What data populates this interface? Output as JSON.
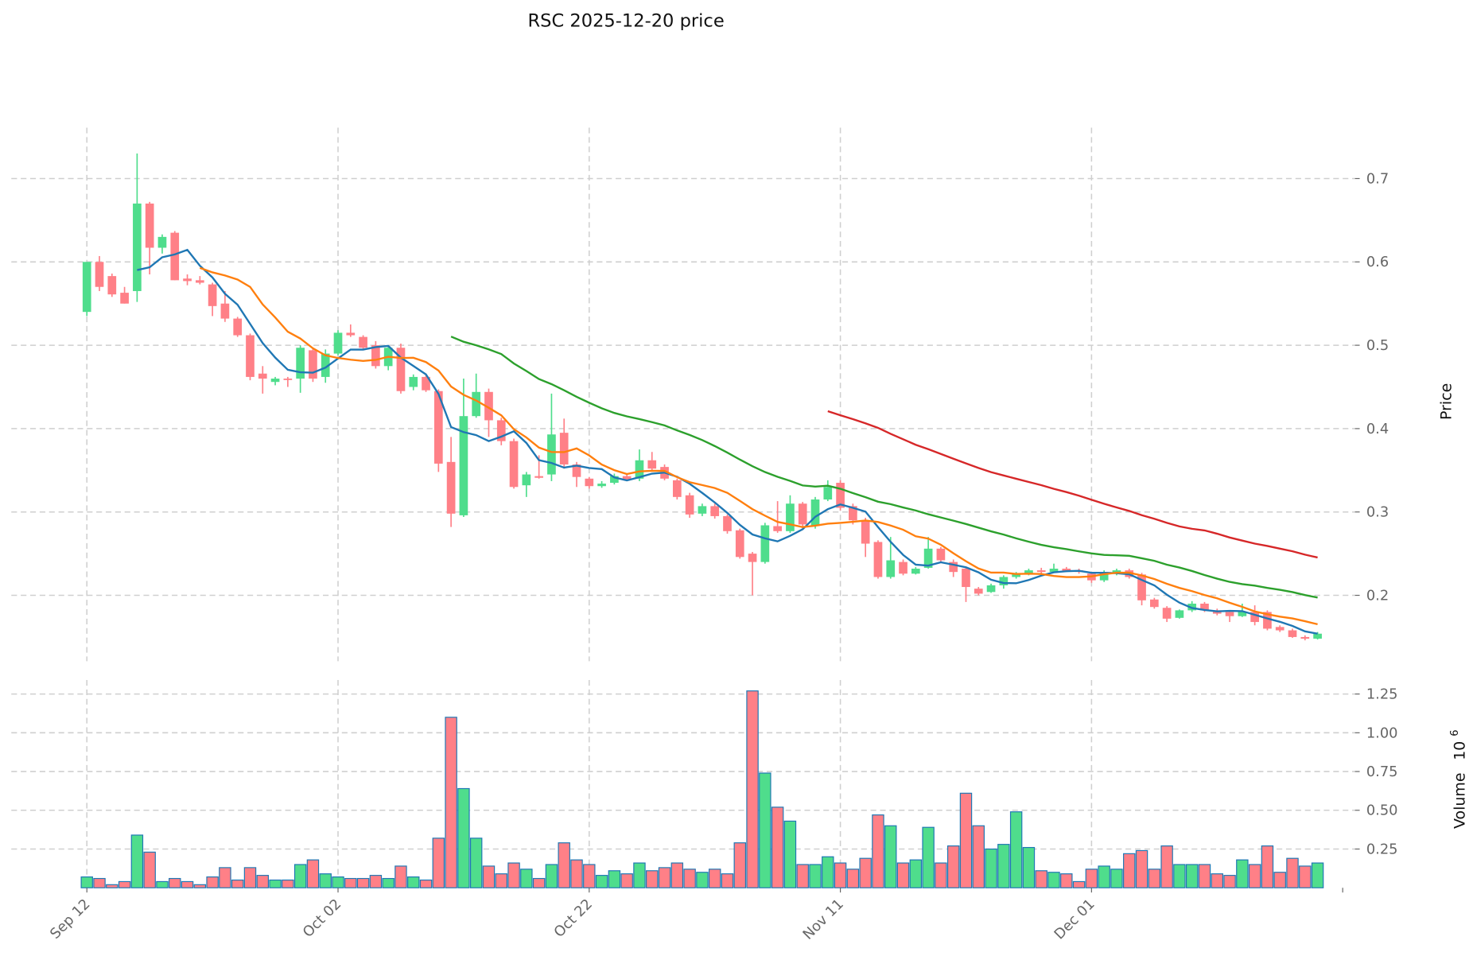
{
  "chart_data": {
    "type": "candlestick",
    "title": "RSC  2025-12-20  price",
    "price_ylabel": "Price",
    "volume_ylabel": "Volume",
    "volume_multiplier": "10",
    "volume_exponent": "6",
    "price_ylim": [
      0.121,
      0.761
    ],
    "volume_ylim": [
      0,
      1.34
    ],
    "price_ticks": [
      {
        "v": 0.2,
        "label": "0.2"
      },
      {
        "v": 0.3,
        "label": "0.3"
      },
      {
        "v": 0.4,
        "label": "0.4"
      },
      {
        "v": 0.5,
        "label": "0.5"
      },
      {
        "v": 0.6,
        "label": "0.6"
      },
      {
        "v": 0.7,
        "label": "0.7"
      }
    ],
    "volume_ticks": [
      {
        "v": 0.25,
        "label": "0.25"
      },
      {
        "v": 0.5,
        "label": "0.50"
      },
      {
        "v": 0.75,
        "label": "0.75"
      },
      {
        "v": 1.0,
        "label": "1.00"
      },
      {
        "v": 1.25,
        "label": "1.25"
      }
    ],
    "x_ticks": [
      {
        "i": 0,
        "label": "Sep 12"
      },
      {
        "i": 20,
        "label": "Oct 02"
      },
      {
        "i": 40,
        "label": "Oct 22"
      },
      {
        "i": 60,
        "label": "Nov 11"
      },
      {
        "i": 80,
        "label": "Dec 01"
      },
      {
        "i": 100,
        "label": ""
      }
    ],
    "grid": true,
    "colors": {
      "up": "#4fdd8c",
      "down": "#ff8087",
      "vol_edge": "#1f77b4",
      "ma5": "#1f77b4",
      "ma10": "#ff7f0e",
      "ma30": "#2ca02c",
      "ma60": "#d62728"
    },
    "moving_averages": [
      {
        "period": 5,
        "color_key": "ma5"
      },
      {
        "period": 10,
        "color_key": "ma10"
      },
      {
        "period": 30,
        "color_key": "ma30"
      },
      {
        "period": 60,
        "color_key": "ma60"
      }
    ],
    "ohlc": [
      [
        0.54,
        0.6,
        0.535,
        0.6
      ],
      [
        0.6,
        0.607,
        0.565,
        0.57
      ],
      [
        0.583,
        0.586,
        0.558,
        0.561
      ],
      [
        0.563,
        0.57,
        0.55,
        0.55
      ],
      [
        0.565,
        0.73,
        0.552,
        0.67
      ],
      [
        0.67,
        0.672,
        0.585,
        0.617
      ],
      [
        0.617,
        0.633,
        0.61,
        0.63
      ],
      [
        0.635,
        0.637,
        0.578,
        0.578
      ],
      [
        0.58,
        0.585,
        0.572,
        0.577
      ],
      [
        0.578,
        0.583,
        0.573,
        0.575
      ],
      [
        0.573,
        0.575,
        0.535,
        0.547
      ],
      [
        0.55,
        0.565,
        0.528,
        0.532
      ],
      [
        0.532,
        0.534,
        0.51,
        0.512
      ],
      [
        0.512,
        0.514,
        0.458,
        0.462
      ],
      [
        0.466,
        0.475,
        0.442,
        0.46
      ],
      [
        0.456,
        0.462,
        0.452,
        0.46
      ],
      [
        0.46,
        0.462,
        0.45,
        0.459
      ],
      [
        0.46,
        0.5,
        0.443,
        0.497
      ],
      [
        0.494,
        0.497,
        0.456,
        0.46
      ],
      [
        0.462,
        0.495,
        0.455,
        0.49
      ],
      [
        0.49,
        0.518,
        0.488,
        0.515
      ],
      [
        0.515,
        0.525,
        0.51,
        0.512
      ],
      [
        0.51,
        0.512,
        0.495,
        0.497
      ],
      [
        0.5,
        0.505,
        0.472,
        0.475
      ],
      [
        0.475,
        0.499,
        0.47,
        0.497
      ],
      [
        0.497,
        0.502,
        0.442,
        0.445
      ],
      [
        0.45,
        0.465,
        0.446,
        0.462
      ],
      [
        0.462,
        0.464,
        0.444,
        0.446
      ],
      [
        0.445,
        0.447,
        0.348,
        0.358
      ],
      [
        0.36,
        0.39,
        0.282,
        0.298
      ],
      [
        0.296,
        0.46,
        0.294,
        0.415
      ],
      [
        0.415,
        0.466,
        0.413,
        0.444
      ],
      [
        0.444,
        0.448,
        0.39,
        0.41
      ],
      [
        0.41,
        0.413,
        0.38,
        0.385
      ],
      [
        0.385,
        0.388,
        0.328,
        0.33
      ],
      [
        0.332,
        0.348,
        0.318,
        0.345
      ],
      [
        0.343,
        0.368,
        0.34,
        0.341
      ],
      [
        0.345,
        0.442,
        0.337,
        0.393
      ],
      [
        0.395,
        0.412,
        0.352,
        0.357
      ],
      [
        0.357,
        0.36,
        0.33,
        0.342
      ],
      [
        0.34,
        0.342,
        0.328,
        0.331
      ],
      [
        0.331,
        0.337,
        0.329,
        0.334
      ],
      [
        0.335,
        0.346,
        0.333,
        0.343
      ],
      [
        0.343,
        0.346,
        0.337,
        0.339
      ],
      [
        0.34,
        0.375,
        0.337,
        0.362
      ],
      [
        0.362,
        0.372,
        0.35,
        0.352
      ],
      [
        0.354,
        0.357,
        0.338,
        0.34
      ],
      [
        0.338,
        0.34,
        0.315,
        0.318
      ],
      [
        0.32,
        0.323,
        0.293,
        0.297
      ],
      [
        0.298,
        0.31,
        0.295,
        0.307
      ],
      [
        0.307,
        0.31,
        0.292,
        0.295
      ],
      [
        0.295,
        0.297,
        0.274,
        0.277
      ],
      [
        0.278,
        0.28,
        0.244,
        0.246
      ],
      [
        0.25,
        0.252,
        0.2,
        0.24
      ],
      [
        0.24,
        0.287,
        0.238,
        0.284
      ],
      [
        0.283,
        0.313,
        0.275,
        0.277
      ],
      [
        0.277,
        0.32,
        0.275,
        0.31
      ],
      [
        0.31,
        0.312,
        0.28,
        0.285
      ],
      [
        0.283,
        0.318,
        0.28,
        0.315
      ],
      [
        0.315,
        0.338,
        0.313,
        0.33
      ],
      [
        0.335,
        0.338,
        0.302,
        0.305
      ],
      [
        0.307,
        0.31,
        0.285,
        0.29
      ],
      [
        0.29,
        0.293,
        0.246,
        0.262
      ],
      [
        0.264,
        0.266,
        0.22,
        0.222
      ],
      [
        0.222,
        0.27,
        0.22,
        0.242
      ],
      [
        0.24,
        0.243,
        0.224,
        0.226
      ],
      [
        0.226,
        0.234,
        0.225,
        0.232
      ],
      [
        0.233,
        0.27,
        0.232,
        0.256
      ],
      [
        0.256,
        0.258,
        0.24,
        0.242
      ],
      [
        0.24,
        0.243,
        0.222,
        0.228
      ],
      [
        0.232,
        0.234,
        0.192,
        0.21
      ],
      [
        0.208,
        0.21,
        0.2,
        0.202
      ],
      [
        0.204,
        0.214,
        0.203,
        0.212
      ],
      [
        0.212,
        0.224,
        0.208,
        0.222
      ],
      [
        0.222,
        0.228,
        0.22,
        0.226
      ],
      [
        0.226,
        0.232,
        0.224,
        0.23
      ],
      [
        0.23,
        0.233,
        0.226,
        0.228
      ],
      [
        0.228,
        0.238,
        0.227,
        0.232
      ],
      [
        0.232,
        0.234,
        0.228,
        0.229
      ],
      [
        0.23,
        0.232,
        0.226,
        0.228
      ],
      [
        0.226,
        0.228,
        0.215,
        0.218
      ],
      [
        0.218,
        0.23,
        0.216,
        0.228
      ],
      [
        0.226,
        0.232,
        0.224,
        0.23
      ],
      [
        0.23,
        0.232,
        0.22,
        0.222
      ],
      [
        0.225,
        0.227,
        0.188,
        0.194
      ],
      [
        0.195,
        0.197,
        0.184,
        0.186
      ],
      [
        0.185,
        0.187,
        0.168,
        0.172
      ],
      [
        0.173,
        0.183,
        0.172,
        0.182
      ],
      [
        0.182,
        0.193,
        0.18,
        0.19
      ],
      [
        0.19,
        0.192,
        0.18,
        0.182
      ],
      [
        0.182,
        0.184,
        0.176,
        0.178
      ],
      [
        0.18,
        0.182,
        0.168,
        0.175
      ],
      [
        0.175,
        0.19,
        0.174,
        0.18
      ],
      [
        0.18,
        0.188,
        0.164,
        0.168
      ],
      [
        0.18,
        0.182,
        0.158,
        0.16
      ],
      [
        0.162,
        0.164,
        0.156,
        0.158
      ],
      [
        0.158,
        0.16,
        0.149,
        0.15
      ],
      [
        0.15,
        0.152,
        0.146,
        0.148
      ],
      [
        0.148,
        0.156,
        0.147,
        0.154
      ]
    ],
    "volume": [
      0.07,
      0.06,
      0.02,
      0.04,
      0.34,
      0.23,
      0.04,
      0.06,
      0.04,
      0.02,
      0.07,
      0.13,
      0.05,
      0.13,
      0.08,
      0.05,
      0.05,
      0.15,
      0.18,
      0.09,
      0.07,
      0.06,
      0.06,
      0.08,
      0.06,
      0.14,
      0.07,
      0.05,
      0.32,
      1.1,
      0.64,
      0.32,
      0.14,
      0.09,
      0.16,
      0.12,
      0.06,
      0.15,
      0.29,
      0.18,
      0.15,
      0.08,
      0.11,
      0.09,
      0.16,
      0.11,
      0.13,
      0.16,
      0.12,
      0.1,
      0.12,
      0.09,
      0.29,
      1.27,
      0.74,
      0.52,
      0.43,
      0.15,
      0.15,
      0.2,
      0.16,
      0.12,
      0.19,
      0.47,
      0.4,
      0.16,
      0.18,
      0.39,
      0.16,
      0.27,
      0.61,
      0.4,
      0.25,
      0.28,
      0.49,
      0.26,
      0.11,
      0.1,
      0.09,
      0.04,
      0.12,
      0.14,
      0.12,
      0.22,
      0.24,
      0.12,
      0.27,
      0.15,
      0.15,
      0.15,
      0.09,
      0.08,
      0.18,
      0.15,
      0.27,
      0.1,
      0.19,
      0.14,
      0.16
    ]
  }
}
